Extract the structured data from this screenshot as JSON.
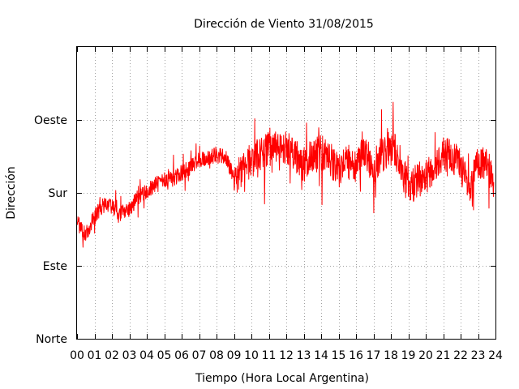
{
  "chart_data": {
    "type": "line",
    "title": "Dirección de Viento 31/08/2015",
    "xlabel": "Tiempo (Hora Local Argentina)",
    "ylabel": "Dirección",
    "xlim": [
      0,
      24
    ],
    "ylim": [
      0,
      360
    ],
    "x_tick_labels": [
      "00",
      "01",
      "02",
      "03",
      "04",
      "05",
      "06",
      "07",
      "08",
      "09",
      "10",
      "11",
      "12",
      "13",
      "14",
      "15",
      "16",
      "17",
      "18",
      "19",
      "20",
      "21",
      "22",
      "23",
      "24"
    ],
    "y_ticks": [
      {
        "value": 0,
        "label": "Norte"
      },
      {
        "value": 90,
        "label": "Este"
      },
      {
        "value": 180,
        "label": "Sur"
      },
      {
        "value": 270,
        "label": "Oeste"
      }
    ],
    "grid": true,
    "line_color": "#ff0000",
    "series": [
      {
        "x": [
          0.0,
          0.5,
          1.0,
          1.5,
          2.0,
          2.5,
          3.0,
          3.5,
          4.0,
          4.5,
          5.0,
          5.5,
          6.0,
          6.5,
          7.0,
          7.5,
          8.0,
          8.5,
          9.0,
          9.5,
          10.0,
          10.5,
          11.0,
          11.5,
          12.0,
          12.5,
          13.0,
          13.5,
          14.0,
          14.5,
          15.0,
          15.5,
          16.0,
          16.5,
          17.0,
          17.5,
          18.0,
          18.5,
          19.0,
          19.5,
          20.0,
          20.5,
          21.0,
          21.5,
          22.0,
          22.5,
          23.0,
          23.5,
          23.9
        ],
        "y": [
          145,
          128,
          150,
          165,
          163,
          155,
          160,
          175,
          183,
          190,
          195,
          198,
          205,
          212,
          220,
          222,
          228,
          225,
          198,
          210,
          220,
          230,
          235,
          238,
          237,
          226,
          215,
          225,
          230,
          223,
          205,
          218,
          215,
          230,
          210,
          225,
          240,
          220,
          185,
          195,
          200,
          215,
          230,
          225,
          215,
          180,
          220,
          210,
          200
        ]
      }
    ]
  }
}
